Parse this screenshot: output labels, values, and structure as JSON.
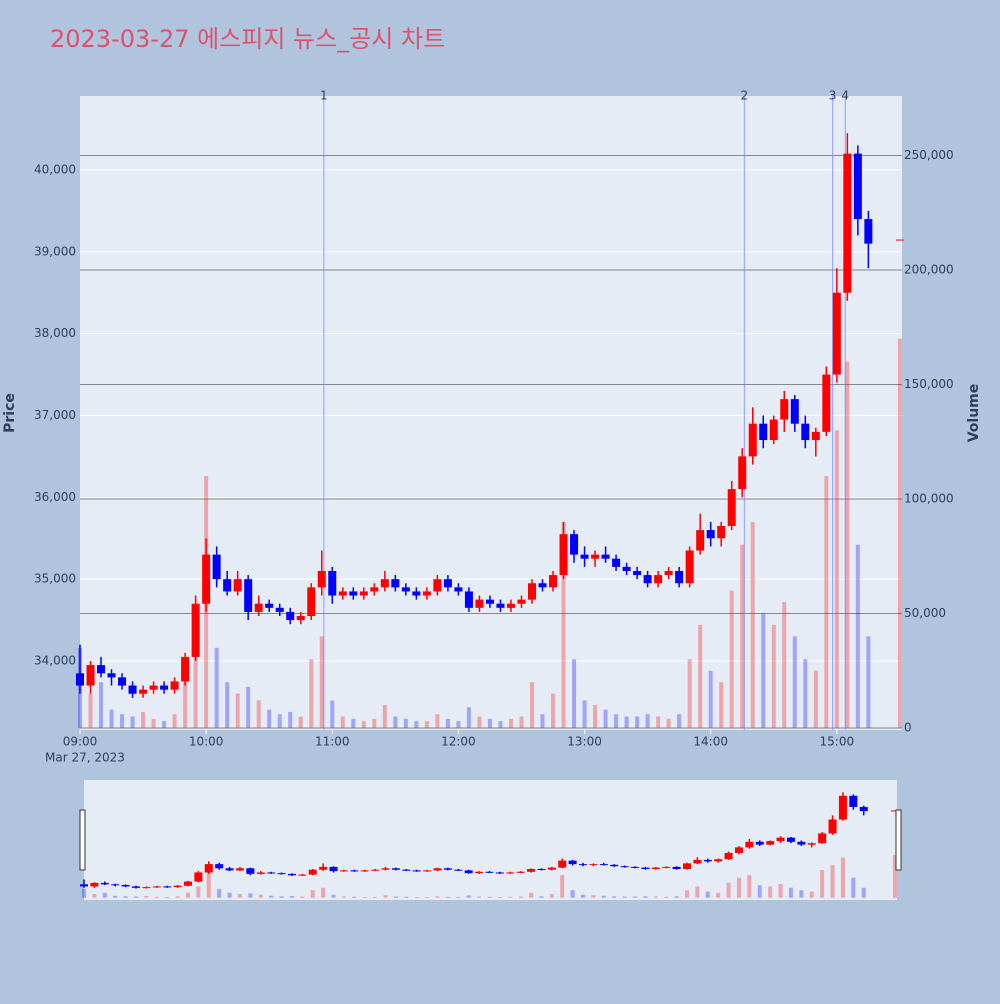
{
  "chart_data": {
    "type": "candlestick",
    "title": "2023-03-27 에스피지 뉴스_공시 차트",
    "y_label": "Price",
    "y2_label": "Volume",
    "x_sublabel": "Mar 27, 2023",
    "increasing_color": "#ff0000",
    "decreasing_color": "#0000ff",
    "x": [
      "2023-03-27 09:00",
      "2023-03-27 09:05",
      "2023-03-27 09:10",
      "2023-03-27 09:15",
      "2023-03-27 09:20",
      "2023-03-27 09:25",
      "2023-03-27 09:30",
      "2023-03-27 09:35",
      "2023-03-27 09:40",
      "2023-03-27 09:45",
      "2023-03-27 09:50",
      "2023-03-27 09:55",
      "2023-03-27 10:00",
      "2023-03-27 10:05",
      "2023-03-27 10:10",
      "2023-03-27 10:15",
      "2023-03-27 10:20",
      "2023-03-27 10:25",
      "2023-03-27 10:30",
      "2023-03-27 10:35",
      "2023-03-27 10:40",
      "2023-03-27 10:45",
      "2023-03-27 10:50",
      "2023-03-27 10:55",
      "2023-03-27 11:00",
      "2023-03-27 11:05",
      "2023-03-27 11:10",
      "2023-03-27 11:15",
      "2023-03-27 11:20",
      "2023-03-27 11:25",
      "2023-03-27 11:30",
      "2023-03-27 11:35",
      "2023-03-27 11:40",
      "2023-03-27 11:45",
      "2023-03-27 11:50",
      "2023-03-27 11:55",
      "2023-03-27 12:00",
      "2023-03-27 12:05",
      "2023-03-27 12:10",
      "2023-03-27 12:15",
      "2023-03-27 12:20",
      "2023-03-27 12:25",
      "2023-03-27 12:30",
      "2023-03-27 12:35",
      "2023-03-27 12:40",
      "2023-03-27 12:45",
      "2023-03-27 12:50",
      "2023-03-27 12:55",
      "2023-03-27 13:00",
      "2023-03-27 13:05",
      "2023-03-27 13:10",
      "2023-03-27 13:15",
      "2023-03-27 13:20",
      "2023-03-27 13:25",
      "2023-03-27 13:30",
      "2023-03-27 13:35",
      "2023-03-27 13:40",
      "2023-03-27 13:45",
      "2023-03-27 13:50",
      "2023-03-27 13:55",
      "2023-03-27 14:00",
      "2023-03-27 14:05",
      "2023-03-27 14:10",
      "2023-03-27 14:15",
      "2023-03-27 14:20",
      "2023-03-27 14:25",
      "2023-03-27 14:30",
      "2023-03-27 14:35",
      "2023-03-27 14:40",
      "2023-03-27 14:45",
      "2023-03-27 14:50",
      "2023-03-27 14:55",
      "2023-03-27 15:00",
      "2023-03-27 15:05",
      "2023-03-27 15:10",
      "2023-03-27 15:15",
      "2023-03-27 15:30"
    ],
    "open": [
      33850,
      33700,
      33950,
      33850,
      33800,
      33700,
      33600,
      33650,
      33700,
      33650,
      33750,
      34050,
      34700,
      35300,
      35000,
      34850,
      35000,
      34600,
      34700,
      34650,
      34600,
      34500,
      34550,
      34900,
      35100,
      34800,
      34850,
      34800,
      34850,
      34900,
      35000,
      34900,
      34850,
      34800,
      34850,
      35000,
      34900,
      34850,
      34650,
      34750,
      34700,
      34650,
      34700,
      34750,
      34950,
      34900,
      35050,
      35550,
      35300,
      35250,
      35300,
      35250,
      35150,
      35100,
      35050,
      34950,
      35050,
      35100,
      34950,
      35350,
      35600,
      35500,
      35650,
      36100,
      36500,
      36900,
      36700,
      36950,
      37200,
      36900,
      36700,
      36800,
      37500,
      38500,
      40200,
      39400,
      39150
    ],
    "high": [
      34200,
      34000,
      34050,
      33900,
      33850,
      33750,
      33700,
      33750,
      33750,
      33800,
      34100,
      34800,
      35500,
      35400,
      35100,
      35100,
      35050,
      34800,
      34750,
      34700,
      34650,
      34600,
      34950,
      35350,
      35150,
      34900,
      34900,
      34900,
      34950,
      35100,
      35050,
      34950,
      34900,
      34900,
      35050,
      35050,
      34950,
      34900,
      34800,
      34800,
      34750,
      34750,
      34800,
      35000,
      35000,
      35100,
      35700,
      35600,
      35400,
      35350,
      35400,
      35300,
      35200,
      35150,
      35100,
      35100,
      35150,
      35150,
      35400,
      35800,
      35700,
      35700,
      36200,
      36600,
      37100,
      37000,
      37000,
      37300,
      37250,
      37000,
      36850,
      37600,
      38800,
      40450,
      40300,
      39500,
      39150
    ],
    "low": [
      33600,
      33600,
      33800,
      33700,
      33650,
      33550,
      33550,
      33600,
      33600,
      33600,
      33700,
      34000,
      34600,
      34900,
      34800,
      34800,
      34500,
      34550,
      34600,
      34550,
      34450,
      34450,
      34500,
      34800,
      34700,
      34750,
      34750,
      34750,
      34800,
      34850,
      34850,
      34800,
      34750,
      34750,
      34800,
      34850,
      34800,
      34600,
      34600,
      34650,
      34600,
      34600,
      34650,
      34700,
      34850,
      34850,
      35000,
      35200,
      35150,
      35150,
      35200,
      35100,
      35050,
      35000,
      34900,
      34900,
      35000,
      34900,
      34900,
      35300,
      35400,
      35400,
      35600,
      36000,
      36400,
      36600,
      36650,
      36800,
      36800,
      36600,
      36500,
      36750,
      37400,
      38400,
      39200,
      38800,
      39150
    ],
    "close": [
      33700,
      33950,
      33850,
      33800,
      33700,
      33600,
      33650,
      33700,
      33650,
      33750,
      34050,
      34700,
      35300,
      35000,
      34850,
      35000,
      34600,
      34700,
      34650,
      34600,
      34500,
      34550,
      34900,
      35100,
      34800,
      34850,
      34800,
      34850,
      34900,
      35000,
      34900,
      34850,
      34800,
      34850,
      35000,
      34900,
      34850,
      34650,
      34750,
      34700,
      34650,
      34700,
      34750,
      34950,
      34900,
      35050,
      35550,
      35300,
      35250,
      35300,
      35250,
      35150,
      35100,
      35050,
      34950,
      35050,
      35100,
      34950,
      35350,
      35600,
      35500,
      35650,
      36100,
      36500,
      36900,
      36700,
      36950,
      37200,
      36900,
      36700,
      36800,
      37500,
      38500,
      40200,
      39400,
      39100,
      39150
    ],
    "volume": [
      35000,
      15000,
      20000,
      8000,
      6000,
      5000,
      7000,
      4000,
      3000,
      6000,
      20000,
      45000,
      110000,
      35000,
      20000,
      15000,
      18000,
      12000,
      8000,
      6000,
      7000,
      5000,
      30000,
      40000,
      12000,
      5000,
      4000,
      3000,
      4000,
      10000,
      5000,
      4000,
      3000,
      3000,
      6000,
      4000,
      3000,
      9000,
      5000,
      4000,
      3000,
      4000,
      5000,
      20000,
      6000,
      15000,
      90000,
      30000,
      12000,
      10000,
      8000,
      6000,
      5000,
      5000,
      6000,
      5000,
      4000,
      6000,
      30000,
      45000,
      25000,
      20000,
      60000,
      80000,
      90000,
      50000,
      45000,
      55000,
      40000,
      30000,
      25000,
      110000,
      130000,
      160000,
      80000,
      40000,
      170000
    ],
    "xlim": [
      "2023-03-27 09:00",
      "2023-03-27 15:31"
    ],
    "xticks": [
      {
        "value": "2023-03-27 09:00",
        "label": "09:00"
      },
      {
        "value": "2023-03-27 10:00",
        "label": "10:00"
      },
      {
        "value": "2023-03-27 11:00",
        "label": "11:00"
      },
      {
        "value": "2023-03-27 12:00",
        "label": "12:00"
      },
      {
        "value": "2023-03-27 13:00",
        "label": "13:00"
      },
      {
        "value": "2023-03-27 14:00",
        "label": "14:00"
      },
      {
        "value": "2023-03-27 15:00",
        "label": "15:00"
      }
    ],
    "ylim": [
      33157,
      40904
    ],
    "yticks": [
      {
        "value": 34000,
        "label": "34,000"
      },
      {
        "value": 35000,
        "label": "35,000"
      },
      {
        "value": 36000,
        "label": "36,000"
      },
      {
        "value": 37000,
        "label": "37,000"
      },
      {
        "value": 38000,
        "label": "38,000"
      },
      {
        "value": 39000,
        "label": "39,000"
      },
      {
        "value": 40000,
        "label": "40,000"
      }
    ],
    "y2lim": [
      -900,
      276000
    ],
    "y2ticks": [
      0,
      {
        "value": 50000,
        "label": "50,000"
      },
      {
        "value": 100000,
        "label": "100,000"
      },
      {
        "value": 150000,
        "label": "150,000"
      },
      {
        "value": 200000,
        "label": "200,000"
      },
      {
        "value": 250000,
        "label": "250,000"
      }
    ],
    "news": [
      {
        "x": "2023-03-27 10:56",
        "label": "1"
      },
      {
        "x": "2023-03-27 14:16",
        "label": "2"
      },
      {
        "x": "2023-03-27 14:58",
        "label": "3"
      },
      {
        "x": "2023-03-27 15:04",
        "label": "4"
      }
    ]
  }
}
